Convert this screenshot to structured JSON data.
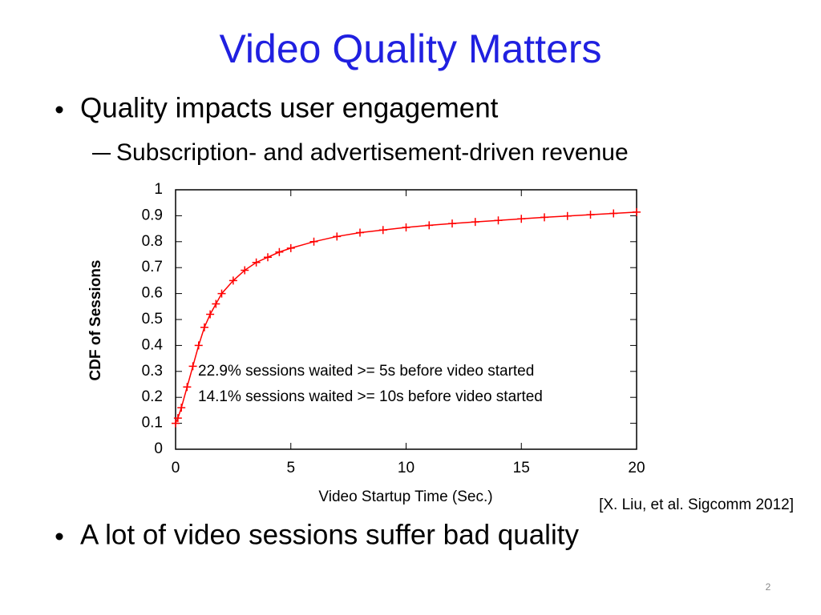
{
  "title": "Video Quality Matters",
  "bullets": [
    {
      "text": "Quality impacts user engagement",
      "sub": [
        "Subscription- and advertisement-driven revenue"
      ]
    },
    {
      "text": "A lot of video sessions suffer bad quality"
    }
  ],
  "citation": "[X. Liu, et al. Sigcomm 2012]",
  "page_number": "2",
  "chart_data": {
    "type": "line",
    "xlabel": "Video Startup Time (Sec.)",
    "ylabel": "CDF of Sessions",
    "annotations": [
      "22.9% sessions waited >= 5s before video started",
      "14.1% sessions waited >= 10s before video started"
    ],
    "x": [
      0,
      0.1,
      0.25,
      0.5,
      0.75,
      1,
      1.25,
      1.5,
      1.75,
      2,
      2.5,
      3,
      3.5,
      4,
      4.5,
      5,
      6,
      7,
      8,
      9,
      10,
      11,
      12,
      13,
      14,
      15,
      16,
      17,
      18,
      19,
      20
    ],
    "values": [
      0.1,
      0.12,
      0.16,
      0.24,
      0.32,
      0.4,
      0.47,
      0.52,
      0.56,
      0.6,
      0.65,
      0.69,
      0.72,
      0.74,
      0.76,
      0.775,
      0.8,
      0.82,
      0.835,
      0.845,
      0.855,
      0.863,
      0.87,
      0.876,
      0.882,
      0.888,
      0.894,
      0.899,
      0.904,
      0.909,
      0.914
    ],
    "color": "#ff0000",
    "xlim": [
      0,
      20
    ],
    "xticks": [
      0,
      5,
      10,
      15,
      20
    ],
    "ylim": [
      0,
      1
    ],
    "yticks": [
      0,
      0.1,
      0.2,
      0.3,
      0.4,
      0.5,
      0.6,
      0.7,
      0.8,
      0.9,
      1
    ]
  }
}
